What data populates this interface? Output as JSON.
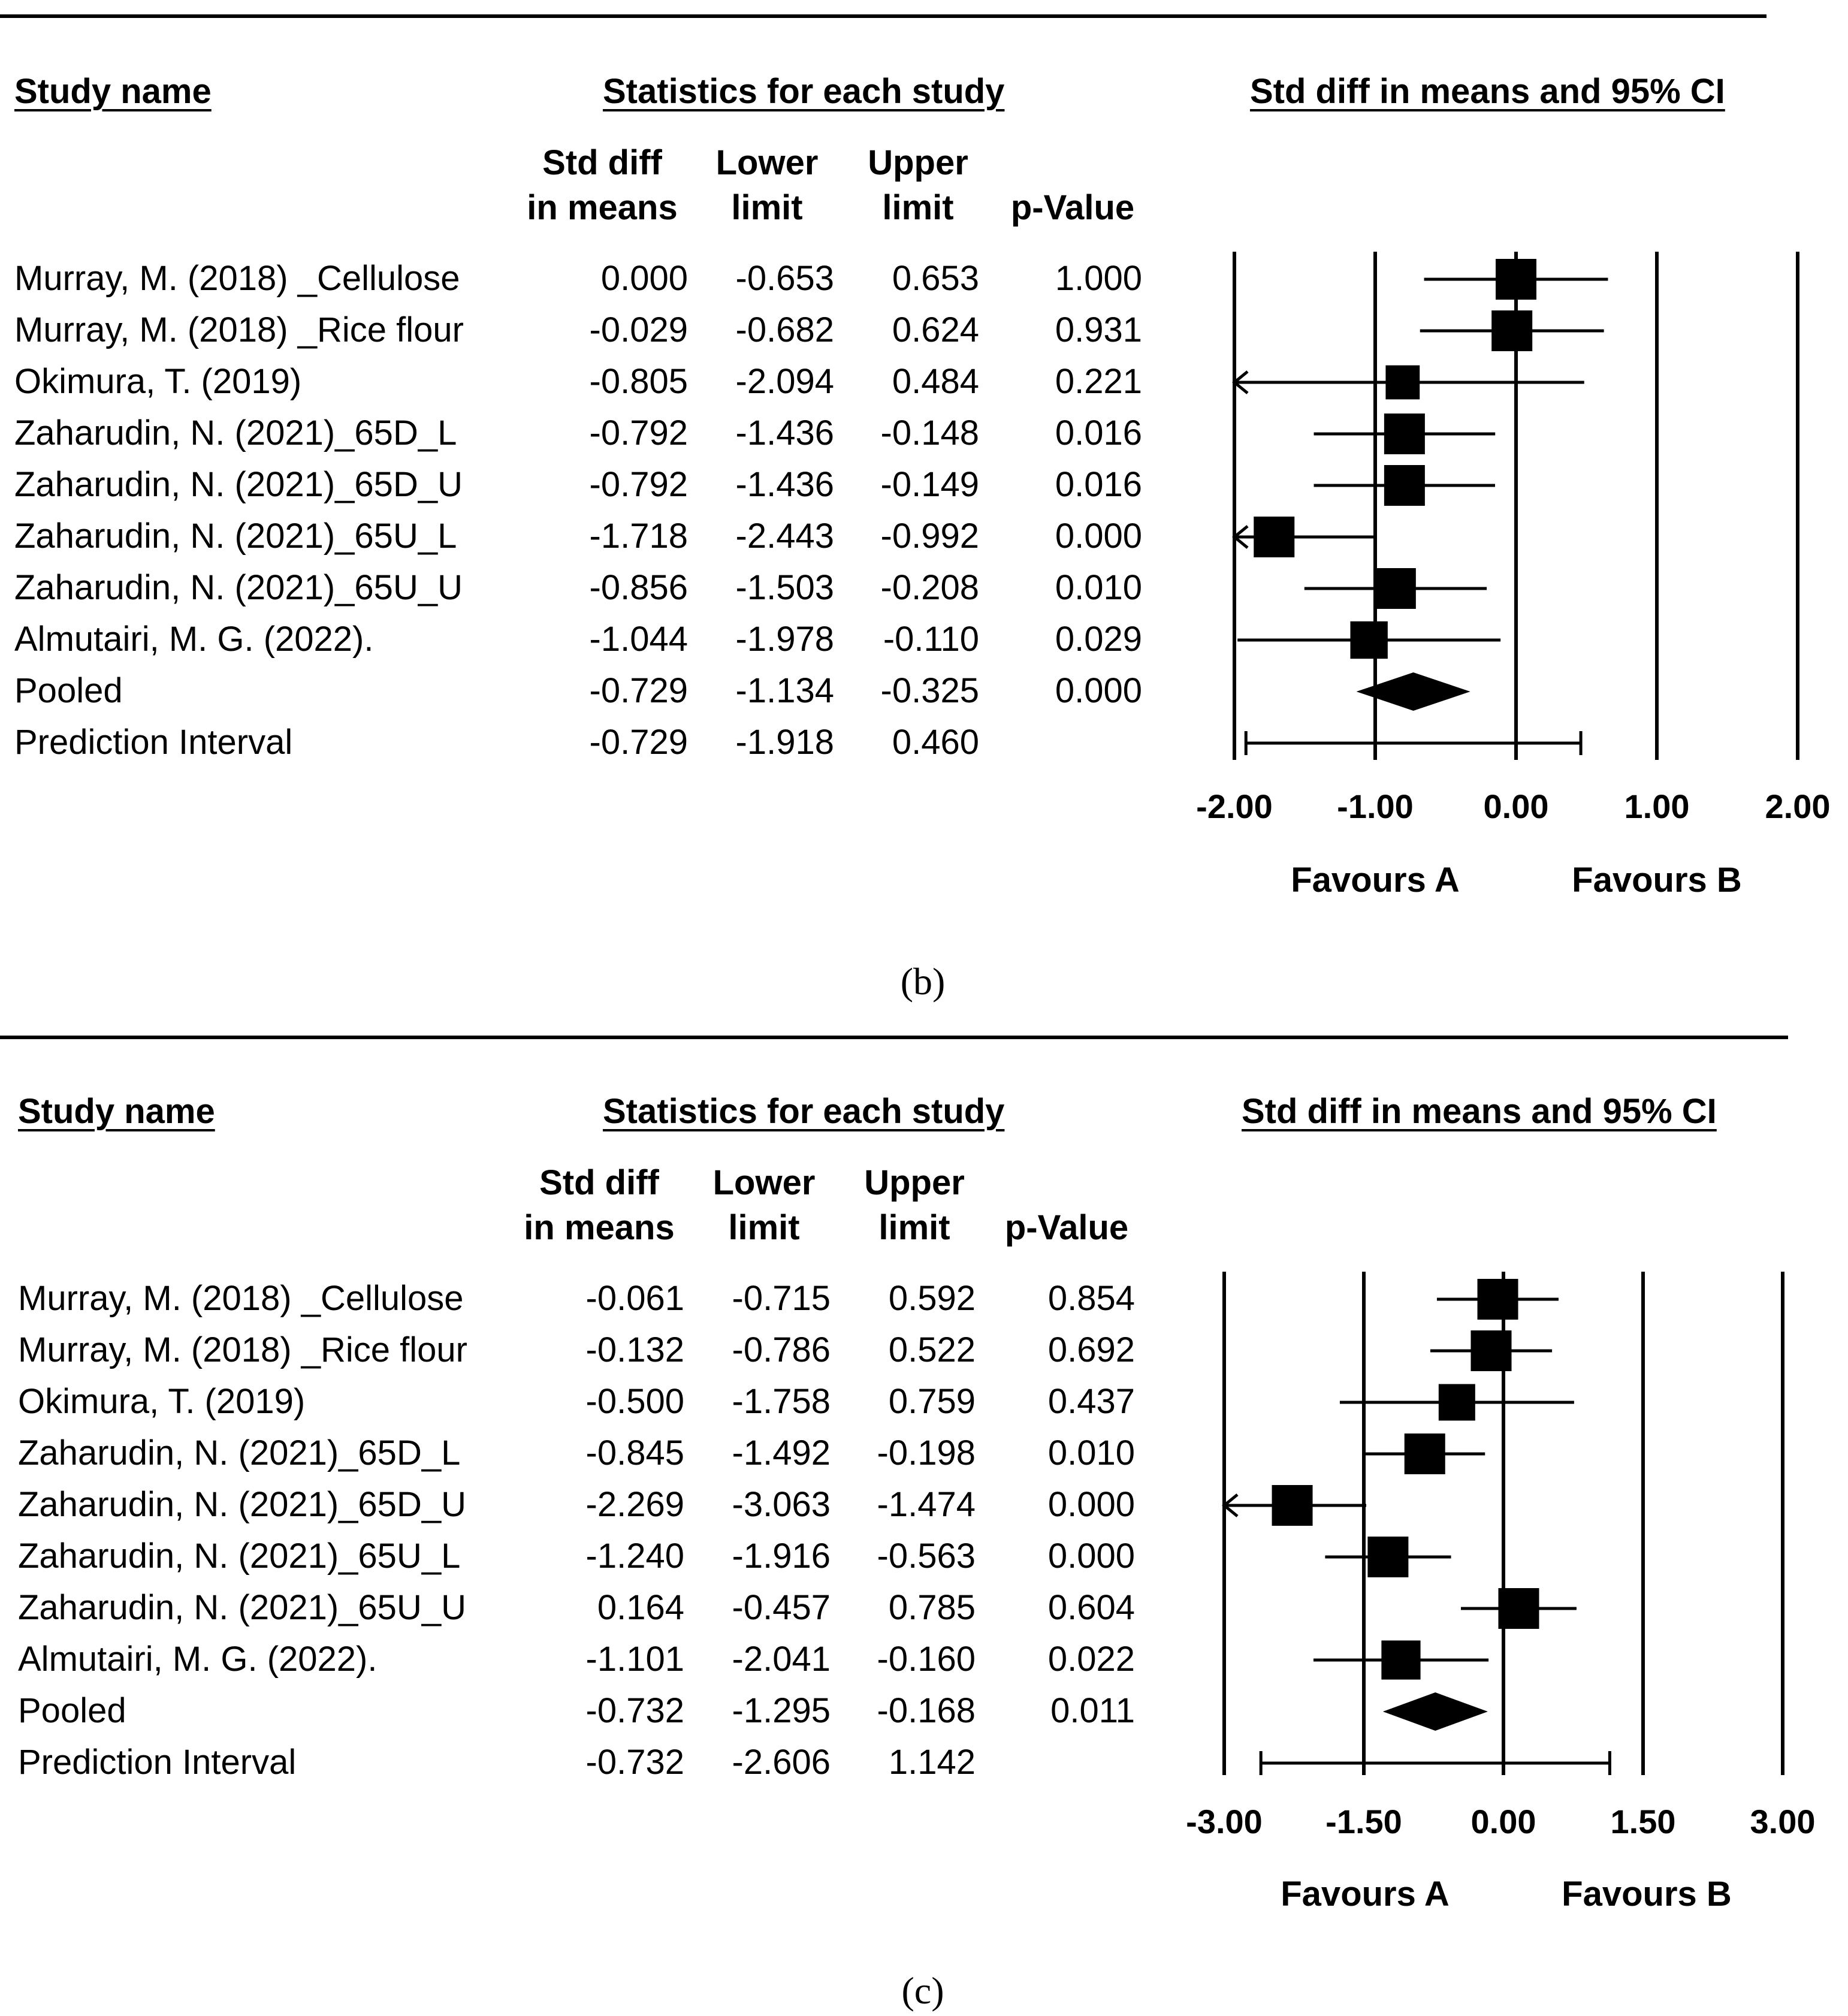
{
  "panels": [
    {
      "caption": "(b)",
      "header_study": "Study name",
      "header_stats": "Statistics for each study",
      "header_plot": "Std diff in means and 95% CI",
      "col_std_line1": "Std diff",
      "col_std_line2": "in means",
      "col_lower_line1": "Lower",
      "col_lower_line2": "limit",
      "col_upper_line1": "Upper",
      "col_upper_line2": "limit",
      "col_p": "p-Value",
      "favours_a": "Favours A",
      "favours_b": "Favours B",
      "rows": [
        {
          "name": "Murray, M. (2018) _Cellulose",
          "std": "0.000",
          "lower": "-0.653",
          "upper": "0.653",
          "p": "1.000"
        },
        {
          "name": "Murray, M. (2018) _Rice flour",
          "std": "-0.029",
          "lower": "-0.682",
          "upper": "0.624",
          "p": "0.931"
        },
        {
          "name": "Okimura, T. (2019)",
          "std": "-0.805",
          "lower": "-2.094",
          "upper": "0.484",
          "p": "0.221"
        },
        {
          "name": "Zaharudin, N. (2021)_65D_L",
          "std": "-0.792",
          "lower": "-1.436",
          "upper": "-0.148",
          "p": "0.016"
        },
        {
          "name": "Zaharudin, N. (2021)_65D_U",
          "std": "-0.792",
          "lower": "-1.436",
          "upper": "-0.149",
          "p": "0.016"
        },
        {
          "name": "Zaharudin, N. (2021)_65U_L",
          "std": "-1.718",
          "lower": "-2.443",
          "upper": "-0.992",
          "p": "0.000"
        },
        {
          "name": "Zaharudin, N. (2021)_65U_U",
          "std": "-0.856",
          "lower": "-1.503",
          "upper": "-0.208",
          "p": "0.010"
        },
        {
          "name": "Almutairi, M. G. (2022).",
          "std": "-1.044",
          "lower": "-1.978",
          "upper": "-0.110",
          "p": "0.029"
        },
        {
          "name": "Pooled",
          "std": "-0.729",
          "lower": "-1.134",
          "upper": "-0.325",
          "p": "0.000"
        },
        {
          "name": "Prediction Interval",
          "std": "-0.729",
          "lower": "-1.918",
          "upper": "0.460",
          "p": ""
        }
      ],
      "ticks": [
        "-2.00",
        "-1.00",
        "0.00",
        "1.00",
        "2.00"
      ]
    },
    {
      "caption": "(c)",
      "header_study": "Study name",
      "header_stats": "Statistics for each study",
      "header_plot": "Std diff in means and 95% CI",
      "col_std_line1": "Std diff",
      "col_std_line2": "in means",
      "col_lower_line1": "Lower",
      "col_lower_line2": "limit",
      "col_upper_line1": "Upper",
      "col_upper_line2": "limit",
      "col_p": "p-Value",
      "favours_a": "Favours A",
      "favours_b": "Favours B",
      "rows": [
        {
          "name": "Murray, M. (2018) _Cellulose",
          "std": "-0.061",
          "lower": "-0.715",
          "upper": "0.592",
          "p": "0.854"
        },
        {
          "name": "Murray, M. (2018) _Rice flour",
          "std": "-0.132",
          "lower": "-0.786",
          "upper": "0.522",
          "p": "0.692"
        },
        {
          "name": "Okimura, T. (2019)",
          "std": "-0.500",
          "lower": "-1.758",
          "upper": "0.759",
          "p": "0.437"
        },
        {
          "name": "Zaharudin, N. (2021)_65D_L",
          "std": "-0.845",
          "lower": "-1.492",
          "upper": "-0.198",
          "p": "0.010"
        },
        {
          "name": "Zaharudin, N. (2021)_65D_U",
          "std": "-2.269",
          "lower": "-3.063",
          "upper": "-1.474",
          "p": "0.000"
        },
        {
          "name": "Zaharudin, N. (2021)_65U_L",
          "std": "-1.240",
          "lower": "-1.916",
          "upper": "-0.563",
          "p": "0.000"
        },
        {
          "name": "Zaharudin, N. (2021)_65U_U",
          "std": "0.164",
          "lower": "-0.457",
          "upper": "0.785",
          "p": "0.604"
        },
        {
          "name": "Almutairi, M. G. (2022).",
          "std": "-1.101",
          "lower": "-2.041",
          "upper": "-0.160",
          "p": "0.022"
        },
        {
          "name": "Pooled",
          "std": "-0.732",
          "lower": "-1.295",
          "upper": "-0.168",
          "p": "0.011"
        },
        {
          "name": "Prediction Interval",
          "std": "-0.732",
          "lower": "-2.606",
          "upper": "1.142",
          "p": ""
        }
      ],
      "ticks": [
        "-3.00",
        "-1.50",
        "0.00",
        "1.50",
        "3.00"
      ]
    }
  ],
  "chart_data": [
    {
      "type": "forest",
      "title": "Std diff in means and 95% CI",
      "panel": "(b)",
      "xlim": [
        -2,
        2
      ],
      "xticks": [
        -2,
        -1,
        0,
        1,
        2
      ],
      "xlabel_left": "Favours A",
      "xlabel_right": "Favours B",
      "studies": [
        {
          "name": "Murray, M. (2018) _Cellulose",
          "effect": 0.0,
          "lower": -0.653,
          "upper": 0.653,
          "weight": 1.0
        },
        {
          "name": "Murray, M. (2018) _Rice flour",
          "effect": -0.029,
          "lower": -0.682,
          "upper": 0.624,
          "weight": 1.0
        },
        {
          "name": "Okimura, T. (2019)",
          "effect": -0.805,
          "lower": -2.094,
          "upper": 0.484,
          "weight": 0.6
        },
        {
          "name": "Zaharudin, N. (2021)_65D_L",
          "effect": -0.792,
          "lower": -1.436,
          "upper": -0.148,
          "weight": 1.0
        },
        {
          "name": "Zaharudin, N. (2021)_65D_U",
          "effect": -0.792,
          "lower": -1.436,
          "upper": -0.149,
          "weight": 1.0
        },
        {
          "name": "Zaharudin, N. (2021)_65U_L",
          "effect": -1.718,
          "lower": -2.443,
          "upper": -0.992,
          "weight": 1.0
        },
        {
          "name": "Zaharudin, N. (2021)_65U_U",
          "effect": -0.856,
          "lower": -1.503,
          "upper": -0.208,
          "weight": 1.0
        },
        {
          "name": "Almutairi, M. G. (2022).",
          "effect": -1.044,
          "lower": -1.978,
          "upper": -0.11,
          "weight": 0.8
        }
      ],
      "pooled": {
        "effect": -0.729,
        "lower": -1.134,
        "upper": -0.325
      },
      "prediction_interval": {
        "effect": -0.729,
        "lower": -1.918,
        "upper": 0.46
      }
    },
    {
      "type": "forest",
      "title": "Std diff in means and 95% CI",
      "panel": "(c)",
      "xlim": [
        -3,
        3
      ],
      "xticks": [
        -3,
        -1.5,
        0,
        1.5,
        3
      ],
      "xlabel_left": "Favours A",
      "xlabel_right": "Favours B",
      "studies": [
        {
          "name": "Murray, M. (2018) _Cellulose",
          "effect": -0.061,
          "lower": -0.715,
          "upper": 0.592,
          "weight": 1.0
        },
        {
          "name": "Murray, M. (2018) _Rice flour",
          "effect": -0.132,
          "lower": -0.786,
          "upper": 0.522,
          "weight": 1.0
        },
        {
          "name": "Okimura, T. (2019)",
          "effect": -0.5,
          "lower": -1.758,
          "upper": 0.759,
          "weight": 0.75
        },
        {
          "name": "Zaharudin, N. (2021)_65D_L",
          "effect": -0.845,
          "lower": -1.492,
          "upper": -0.198,
          "weight": 1.0
        },
        {
          "name": "Zaharudin, N. (2021)_65D_U",
          "effect": -2.269,
          "lower": -3.063,
          "upper": -1.474,
          "weight": 1.0
        },
        {
          "name": "Zaharudin, N. (2021)_65U_L",
          "effect": -1.24,
          "lower": -1.916,
          "upper": -0.563,
          "weight": 1.0
        },
        {
          "name": "Zaharudin, N. (2021)_65U_U",
          "effect": 0.164,
          "lower": -0.457,
          "upper": 0.785,
          "weight": 1.0
        },
        {
          "name": "Almutairi, M. G. (2022).",
          "effect": -1.101,
          "lower": -2.041,
          "upper": -0.16,
          "weight": 0.9
        }
      ],
      "pooled": {
        "effect": -0.732,
        "lower": -1.295,
        "upper": -0.168
      },
      "prediction_interval": {
        "effect": -0.732,
        "lower": -2.606,
        "upper": 1.142
      }
    }
  ]
}
